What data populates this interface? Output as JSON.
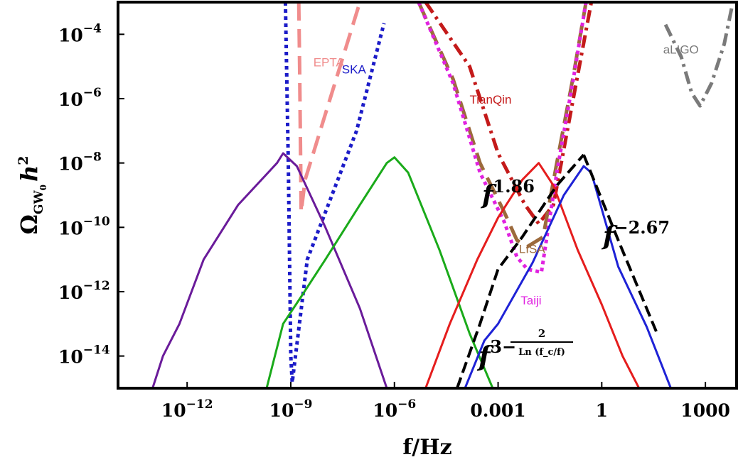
{
  "chart_data": {
    "type": "line",
    "xlabel": "f/Hz",
    "ylabel": "Ω_GW0 h²",
    "x_scale": "log",
    "y_scale": "log",
    "xlim": [
      1e-14,
      8000
    ],
    "ylim": [
      1e-15,
      0.001
    ],
    "x_ticks": [
      {
        "value": 1e-12,
        "base": "10",
        "exp": "−12"
      },
      {
        "value": 1e-09,
        "base": "10",
        "exp": "−9"
      },
      {
        "value": 1e-06,
        "base": "10",
        "exp": "−6"
      },
      {
        "value": 0.001,
        "label": "0.001"
      },
      {
        "value": 1,
        "label": "1"
      },
      {
        "value": 1000,
        "label": "1000"
      }
    ],
    "y_ticks": [
      {
        "value": 0.0001,
        "exp": "−4"
      },
      {
        "value": 1e-06,
        "exp": "−6"
      },
      {
        "value": 1e-08,
        "exp": "−8"
      },
      {
        "value": 1e-10,
        "exp": "−10"
      },
      {
        "value": 1e-12,
        "exp": "−12"
      },
      {
        "value": 1e-14,
        "exp": "−14"
      }
    ],
    "grid": false,
    "detectors": [
      {
        "name": "EPTA",
        "color": "#f08c8c",
        "dash": "long",
        "points": [
          [
            1.7e-09,
            0.001
          ],
          [
            1.8e-09,
            1e-05
          ],
          [
            2e-09,
            3e-10
          ],
          [
            2.6e-09,
            3e-09
          ],
          [
            1e-07,
            0.001
          ]
        ]
      },
      {
        "name": "SKA",
        "color": "#1c1cc8",
        "dash": "dot",
        "points": [
          [
            7e-10,
            0.001
          ],
          [
            8.5e-10,
            1e-08
          ],
          [
            1e-09,
            1e-14
          ],
          [
            1.1e-09,
            1.5e-15
          ],
          [
            3e-09,
            1e-11
          ],
          [
            8e-08,
            1e-07
          ],
          [
            5e-07,
            0.00022
          ]
        ]
      },
      {
        "name": "TianQin",
        "color": "#c41a1a",
        "dash": "dashdot",
        "points": [
          [
            8e-06,
            0.001
          ],
          [
            0.00015,
            1e-05
          ],
          [
            0.001,
            2e-08
          ],
          [
            0.006,
            5e-10
          ],
          [
            0.015,
            1.3e-10
          ],
          [
            0.04,
            5e-10
          ],
          [
            0.15,
            1e-06
          ],
          [
            0.5,
            0.001
          ]
        ]
      },
      {
        "name": "LISA",
        "color": "#9c6a3c",
        "dash": "long",
        "points": [
          [
            5e-06,
            0.001
          ],
          [
            5e-05,
            4e-06
          ],
          [
            0.0003,
            1e-08
          ],
          [
            0.0015,
            3e-10
          ],
          [
            0.0035,
            4e-11
          ],
          [
            0.007,
            2.5e-11
          ],
          [
            0.02,
            5e-11
          ],
          [
            0.05,
            1e-08
          ],
          [
            0.15,
            5e-06
          ],
          [
            0.35,
            0.001
          ]
        ]
      },
      {
        "name": "Taiji",
        "color": "#e022e0",
        "dash": "dot",
        "points": [
          [
            5e-06,
            0.001
          ],
          [
            5e-05,
            3e-06
          ],
          [
            0.0003,
            5e-09
          ],
          [
            0.0015,
            1.5e-10
          ],
          [
            0.0035,
            1.2e-11
          ],
          [
            0.007,
            5e-12
          ],
          [
            0.018,
            4e-12
          ],
          [
            0.05,
            5e-09
          ],
          [
            0.15,
            4e-06
          ],
          [
            0.35,
            0.001
          ]
        ]
      },
      {
        "name": "aLIGO",
        "color": "#7a7a7a",
        "dash": "dashdot",
        "points": [
          [
            70,
            0.0002
          ],
          [
            200,
            2e-05
          ],
          [
            400,
            1.5e-06
          ],
          [
            700,
            6e-07
          ],
          [
            1500,
            3e-06
          ],
          [
            3500,
            5e-05
          ],
          [
            6000,
            0.0008
          ]
        ]
      }
    ],
    "series": [
      {
        "color": "#6a1b9a",
        "points": [
          [
            1e-13,
            1e-15
          ],
          [
            2e-13,
            1e-14
          ],
          [
            6e-13,
            1e-13
          ],
          [
            3e-12,
            1e-11
          ],
          [
            3e-11,
            5e-10
          ],
          [
            4e-10,
            1e-08
          ],
          [
            6e-10,
            2e-08
          ],
          [
            1.5e-09,
            8e-09
          ],
          [
            1e-08,
            1e-10
          ],
          [
            1e-07,
            3e-13
          ],
          [
            6e-07,
            1e-15
          ]
        ]
      },
      {
        "color": "#1aaa1a",
        "points": [
          [
            2e-10,
            1e-15
          ],
          [
            6e-10,
            1e-13
          ],
          [
            2e-09,
            7e-13
          ],
          [
            1e-08,
            1e-11
          ],
          [
            1e-07,
            5e-10
          ],
          [
            6e-07,
            1e-08
          ],
          [
            1e-06,
            1.5e-08
          ],
          [
            2.5e-06,
            5e-09
          ],
          [
            2e-05,
            2e-11
          ],
          [
            0.00015,
            5e-14
          ],
          [
            0.0007,
            1e-15
          ]
        ]
      },
      {
        "color": "#e51d1d",
        "points": [
          [
            8e-06,
            1e-15
          ],
          [
            4e-05,
            1e-13
          ],
          [
            0.00025,
            1e-11
          ],
          [
            0.001,
            2e-10
          ],
          [
            0.005,
            3e-09
          ],
          [
            0.015,
            1e-08
          ],
          [
            0.04,
            2e-09
          ],
          [
            0.2,
            2e-11
          ],
          [
            1,
            4e-13
          ],
          [
            4,
            1e-14
          ],
          [
            12,
            1e-15
          ]
        ]
      },
      {
        "color": "#1e22d6",
        "points": [
          [
            0.00011,
            1e-15
          ],
          [
            0.0004,
            3e-14
          ],
          [
            0.001,
            1e-13
          ],
          [
            0.01,
            8e-12
          ],
          [
            0.08,
            1e-09
          ],
          [
            0.3,
            8e-09
          ],
          [
            0.5,
            5e-09
          ],
          [
            3,
            6e-12
          ],
          [
            20,
            8e-14
          ],
          [
            100,
            1e-15
          ]
        ]
      }
    ],
    "fits": [
      {
        "label_base": "f",
        "label_exp": "1.86",
        "points": [
          [
            6.5e-05,
            1e-15
          ],
          [
            0.0003,
            1e-13
          ],
          [
            0.001,
            5e-12
          ],
          [
            0.005,
            5e-11
          ],
          [
            0.05,
            2e-09
          ],
          [
            0.3,
            1.8e-08
          ]
        ]
      },
      {
        "label_base": "f",
        "label_exp": "−2.67",
        "points": [
          [
            0.3,
            1.8e-08
          ],
          [
            3,
            4e-11
          ],
          [
            40,
            5e-14
          ]
        ]
      }
    ],
    "annotations": [
      {
        "base": "f",
        "exp": "3−",
        "frac_num": "2",
        "frac_den": "Ln (f_c/f)"
      }
    ]
  }
}
